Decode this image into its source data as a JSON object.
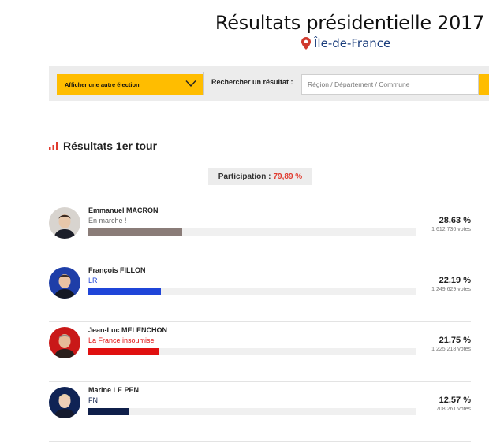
{
  "header": {
    "title": "Résultats présidentielle 2017",
    "region": "Île-de-France",
    "pin_color": "#d03a2e",
    "region_color": "#1a3d7c"
  },
  "toolbar": {
    "election_select_label": "Afficher une autre élection",
    "search_label": "Rechercher un résultat :",
    "search_placeholder": "Région / Département / Commune",
    "search_value": "",
    "accent": "#ffbd00"
  },
  "results": {
    "section_title": "Résultats 1er tour",
    "participation_label": "Participation :",
    "participation_value": "79,89 %",
    "candidates": [
      {
        "name": "Emmanuel MACRON",
        "party": "En marche !",
        "percent_label": "28.63 %",
        "percent": 28.63,
        "votes": "1 612 736 votes",
        "color": "#8a7c78",
        "party_color": "#666666",
        "avatar_icon": "portrait-macron-icon"
      },
      {
        "name": "François FILLON",
        "party": "LR",
        "percent_label": "22.19 %",
        "percent": 22.19,
        "votes": "1 249 629 votes",
        "color": "#1f45d8",
        "party_color": "#1f45d8",
        "avatar_icon": "portrait-fillon-icon"
      },
      {
        "name": "Jean-Luc MELENCHON",
        "party": "La France insoumise",
        "percent_label": "21.75 %",
        "percent": 21.75,
        "votes": "1 225 218 votes",
        "color": "#e01010",
        "party_color": "#e01010",
        "avatar_icon": "portrait-melenchon-icon"
      },
      {
        "name": "Marine LE PEN",
        "party": "FN",
        "percent_label": "12.57 %",
        "percent": 12.57,
        "votes": "708 261 votes",
        "color": "#0f1f4a",
        "party_color": "#0f1f4a",
        "avatar_icon": "portrait-lepen-icon"
      }
    ]
  }
}
